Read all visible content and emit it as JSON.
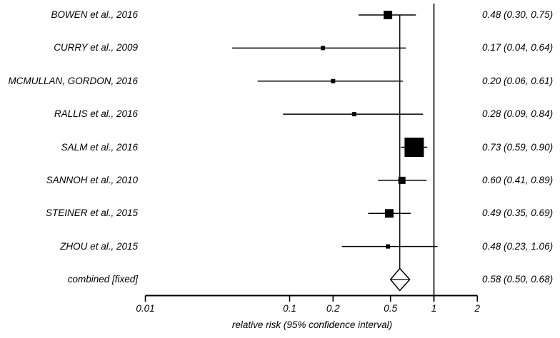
{
  "chart_data": {
    "type": "forest",
    "x_scale": "log10",
    "xlim": [
      0.01,
      2
    ],
    "x_tick_values": [
      0.01,
      0.1,
      0.2,
      0.5,
      1,
      2
    ],
    "x_tick_labels": [
      "0.01",
      "0.1",
      "0.2",
      "0.5",
      "1",
      "2"
    ],
    "xlabel": "relative risk (95% confidence interval)",
    "reference_value": 1,
    "grid": false,
    "rows": [
      {
        "label": "BOWEN et al., 2016",
        "estimate": 0.48,
        "ci_low": 0.3,
        "ci_high": 0.75,
        "value_text": "0.48 (0.30, 0.75)",
        "marker_size": 12
      },
      {
        "label": "CURRY et al., 2009",
        "estimate": 0.17,
        "ci_low": 0.04,
        "ci_high": 0.64,
        "value_text": "0.17 (0.04, 0.64)",
        "marker_size": 6
      },
      {
        "label": "MCMULLAN, GORDON, 2016",
        "estimate": 0.2,
        "ci_low": 0.06,
        "ci_high": 0.61,
        "value_text": "0.20 (0.06, 0.61)",
        "marker_size": 6
      },
      {
        "label": "RALLIS et al., 2016",
        "estimate": 0.28,
        "ci_low": 0.09,
        "ci_high": 0.84,
        "value_text": "0.28 (0.09, 0.84)",
        "marker_size": 6
      },
      {
        "label": "SALM et al., 2016",
        "estimate": 0.73,
        "ci_low": 0.59,
        "ci_high": 0.9,
        "value_text": "0.73 (0.59, 0.90)",
        "marker_size": 27
      },
      {
        "label": "SANNOH et al., 2010",
        "estimate": 0.6,
        "ci_low": 0.41,
        "ci_high": 0.89,
        "value_text": "0.60 (0.41, 0.89)",
        "marker_size": 10
      },
      {
        "label": "STEINER et al., 2015",
        "estimate": 0.49,
        "ci_low": 0.35,
        "ci_high": 0.69,
        "value_text": "0.49 (0.35, 0.69)",
        "marker_size": 12
      },
      {
        "label": "ZHOU et al., 2015",
        "estimate": 0.48,
        "ci_low": 0.23,
        "ci_high": 1.06,
        "value_text": "0.48 (0.23, 1.06)",
        "marker_size": 6
      }
    ],
    "combined": {
      "label": "combined [fixed]",
      "estimate": 0.58,
      "ci_low": 0.5,
      "ci_high": 0.68,
      "value_text": "0.58 (0.50, 0.68)",
      "model": "fixed"
    },
    "colors": {
      "ink": "#000000",
      "background": "#ffffff",
      "diamond_fill": "#ffffff"
    }
  }
}
